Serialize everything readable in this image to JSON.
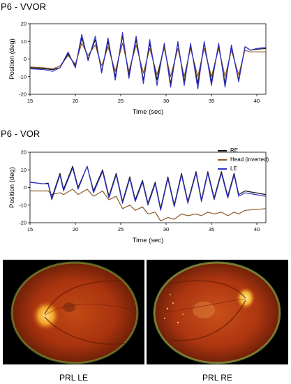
{
  "figure": {
    "panels": [
      {
        "title": "P6 - VVOR"
      },
      {
        "title": "P6 - VOR"
      }
    ],
    "images": [
      {
        "caption": "PRL LE"
      },
      {
        "caption": "PRL RE"
      }
    ]
  },
  "colors": {
    "RE": "#111111",
    "Head": "#8b5a2b",
    "LE": "#3333cc"
  },
  "chart_data": [
    {
      "type": "line",
      "title": "P6 - VVOR",
      "xlabel": "Time (sec)",
      "ylabel": "Position (deg)",
      "xlim": [
        15,
        41
      ],
      "ylim": [
        -20,
        20
      ],
      "xticks": [
        15,
        20,
        25,
        30,
        35,
        40
      ],
      "yticks": [
        -20,
        -10,
        0,
        10,
        20
      ],
      "grid": false,
      "series": [
        {
          "name": "RE",
          "x": [
            15,
            16.5,
            17.5,
            18.3,
            19.2,
            20.0,
            20.7,
            21.4,
            22.2,
            22.9,
            23.6,
            24.4,
            25.2,
            25.9,
            26.7,
            27.5,
            28.2,
            29.0,
            29.8,
            30.5,
            31.3,
            32.0,
            32.7,
            33.5,
            34.2,
            35.0,
            35.8,
            36.5,
            37.2,
            38.0,
            38.7,
            39.3,
            40,
            41
          ],
          "y": [
            -5,
            -5.5,
            -6,
            -5,
            3,
            -4,
            12,
            0,
            11,
            -7,
            10,
            -10,
            13,
            -9,
            11,
            -12,
            9,
            -12,
            8,
            -14,
            9,
            -13,
            8,
            -14,
            9,
            -13,
            8,
            -14,
            7,
            -12,
            7,
            5,
            5.5,
            6
          ]
        },
        {
          "name": "Head (inverted)",
          "x": [
            15,
            16.5,
            17.5,
            18.3,
            19.2,
            20.0,
            20.7,
            21.4,
            22.2,
            22.9,
            23.6,
            24.4,
            25.2,
            25.9,
            26.7,
            27.5,
            28.2,
            29.0,
            29.8,
            30.5,
            31.3,
            32.0,
            32.7,
            33.5,
            34.2,
            35.0,
            35.8,
            36.5,
            37.2,
            38.0,
            38.7,
            39.3,
            40,
            41
          ],
          "y": [
            -4.5,
            -5,
            -5.5,
            -4,
            2,
            -3,
            9,
            2,
            8,
            -4,
            7,
            -7,
            9,
            -7,
            8,
            -8,
            6,
            -9,
            6,
            -10,
            6,
            -10,
            6,
            -10,
            6,
            -10,
            6,
            -10,
            5,
            -9,
            5,
            4,
            4,
            4
          ]
        },
        {
          "name": "LE",
          "x": [
            15,
            16.5,
            17.5,
            18.3,
            19.2,
            20.0,
            20.7,
            21.4,
            22.2,
            22.9,
            23.6,
            24.4,
            25.2,
            25.9,
            26.7,
            27.5,
            28.2,
            29.0,
            29.8,
            30.5,
            31.3,
            32.0,
            32.7,
            33.5,
            34.2,
            35.0,
            35.8,
            36.5,
            37.2,
            38.0,
            38.7,
            39.3,
            40,
            41
          ],
          "y": [
            -5.5,
            -6,
            -7,
            -5,
            4,
            -5,
            14,
            -1,
            13,
            -8,
            12,
            -12,
            15,
            -11,
            13,
            -14,
            11,
            -15,
            9,
            -16,
            10,
            -15,
            9,
            -17,
            10,
            -15,
            9,
            -16,
            8,
            -13,
            7,
            5,
            6,
            6.5
          ]
        }
      ]
    },
    {
      "type": "line",
      "title": "P6 - VOR",
      "xlabel": "Time (sec)",
      "ylabel": "Position (deg)",
      "xlim": [
        15,
        41
      ],
      "ylim": [
        -20,
        20
      ],
      "xticks": [
        15,
        20,
        25,
        30,
        35,
        40
      ],
      "yticks": [
        -20,
        -10,
        0,
        10,
        20
      ],
      "grid": false,
      "legend": "top-right",
      "series": [
        {
          "name": "RE",
          "x": [
            15,
            16.5,
            17.0,
            17.4,
            18.3,
            18.7,
            19.7,
            20.3,
            21.3,
            22.0,
            23.0,
            23.7,
            24.5,
            25.2,
            26.0,
            26.6,
            27.4,
            28.0,
            28.8,
            29.4,
            30.2,
            30.9,
            31.7,
            32.4,
            33.3,
            33.9,
            34.6,
            35.3,
            36.1,
            36.8,
            37.5,
            38.0,
            38.7,
            41
          ],
          "y": [
            3,
            2,
            2.5,
            -6,
            8,
            -1,
            12,
            0,
            12,
            -2,
            10,
            -5,
            8,
            -8,
            6,
            -7,
            4,
            -9,
            3,
            -12,
            6,
            -10,
            8,
            -8,
            9,
            -7,
            9,
            -6,
            9,
            -5,
            8,
            -4,
            -2,
            -4
          ]
        },
        {
          "name": "Head (inverted)",
          "x": [
            15,
            16.5,
            17.0,
            17.4,
            18.3,
            18.7,
            19.7,
            20.3,
            21.3,
            22.0,
            23.0,
            23.7,
            24.5,
            25.2,
            26.0,
            26.6,
            27.4,
            28.0,
            28.8,
            29.4,
            30.2,
            30.9,
            31.7,
            32.4,
            33.3,
            33.9,
            34.6,
            35.3,
            36.1,
            36.8,
            37.5,
            38.0,
            38.7,
            41
          ],
          "y": [
            -2,
            -2,
            -2,
            -4,
            -3,
            -4,
            -1,
            -4,
            -1,
            -5,
            -2,
            -7,
            -5,
            -12,
            -10,
            -13,
            -11,
            -15,
            -14,
            -19,
            -17,
            -18,
            -15,
            -16,
            -15,
            -16,
            -14,
            -15,
            -14,
            -16,
            -14,
            -15,
            -13,
            -12
          ]
        },
        {
          "name": "LE",
          "x": [
            15,
            16.5,
            17.0,
            17.4,
            18.3,
            18.7,
            19.7,
            20.3,
            21.3,
            22.0,
            23.0,
            23.7,
            24.5,
            25.2,
            26.0,
            26.6,
            27.4,
            28.0,
            28.8,
            29.4,
            30.2,
            30.9,
            31.7,
            32.4,
            33.3,
            33.9,
            34.6,
            35.3,
            36.1,
            36.8,
            37.5,
            38.0,
            38.7,
            41
          ],
          "y": [
            3,
            2,
            2,
            -7,
            7,
            -2,
            11,
            -1,
            12,
            -3,
            9,
            -6,
            7,
            -9,
            5,
            -8,
            3,
            -10,
            2,
            -13,
            5,
            -11,
            7,
            -9,
            8,
            -8,
            8,
            -7,
            8,
            -6,
            7,
            -5,
            -3,
            -5
          ]
        }
      ]
    }
  ]
}
